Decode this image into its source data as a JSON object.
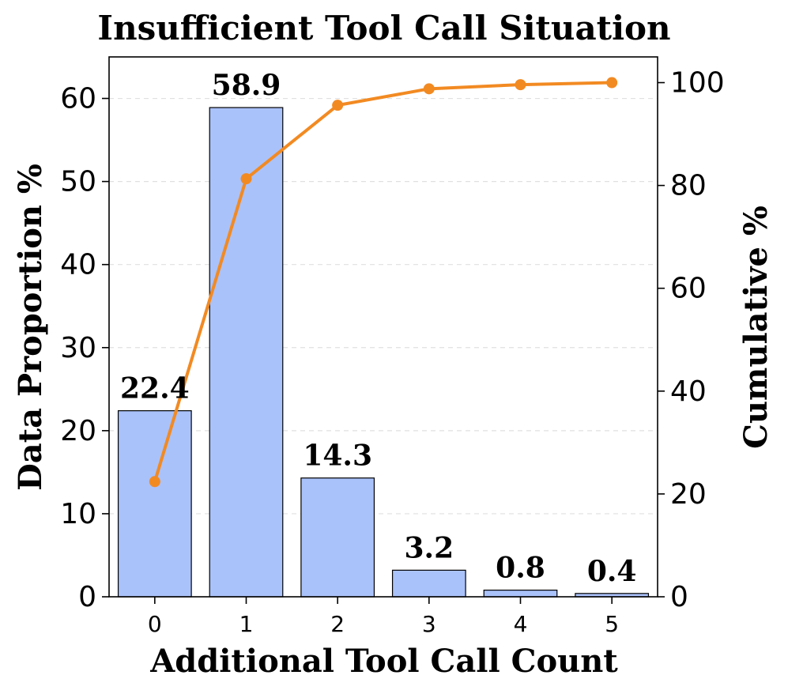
{
  "chart_data": {
    "type": "bar",
    "title": "Insufficient Tool Call Situation",
    "xlabel": "Additional Tool Call Count",
    "ylabel": "Data Proportion %",
    "y2label": "Cumulative %",
    "categories": [
      "0",
      "1",
      "2",
      "3",
      "4",
      "5"
    ],
    "values": [
      22.4,
      58.9,
      14.3,
      3.2,
      0.8,
      0.4
    ],
    "data_labels": [
      "22.4",
      "58.9",
      "14.3",
      "3.2",
      "0.8",
      "0.4"
    ],
    "cumulative": [
      22.4,
      81.3,
      95.6,
      98.8,
      99.6,
      100.0
    ],
    "ylim": [
      0,
      65
    ],
    "y2lim": [
      0,
      105
    ],
    "yticks": [
      0,
      10,
      20,
      30,
      40,
      50,
      60
    ],
    "y2ticks": [
      0,
      20,
      40,
      60,
      80,
      100
    ],
    "grid": true,
    "bar_color": "#aac2fa",
    "bar_edge_color": "#000000",
    "line_color": "#f28a22"
  }
}
